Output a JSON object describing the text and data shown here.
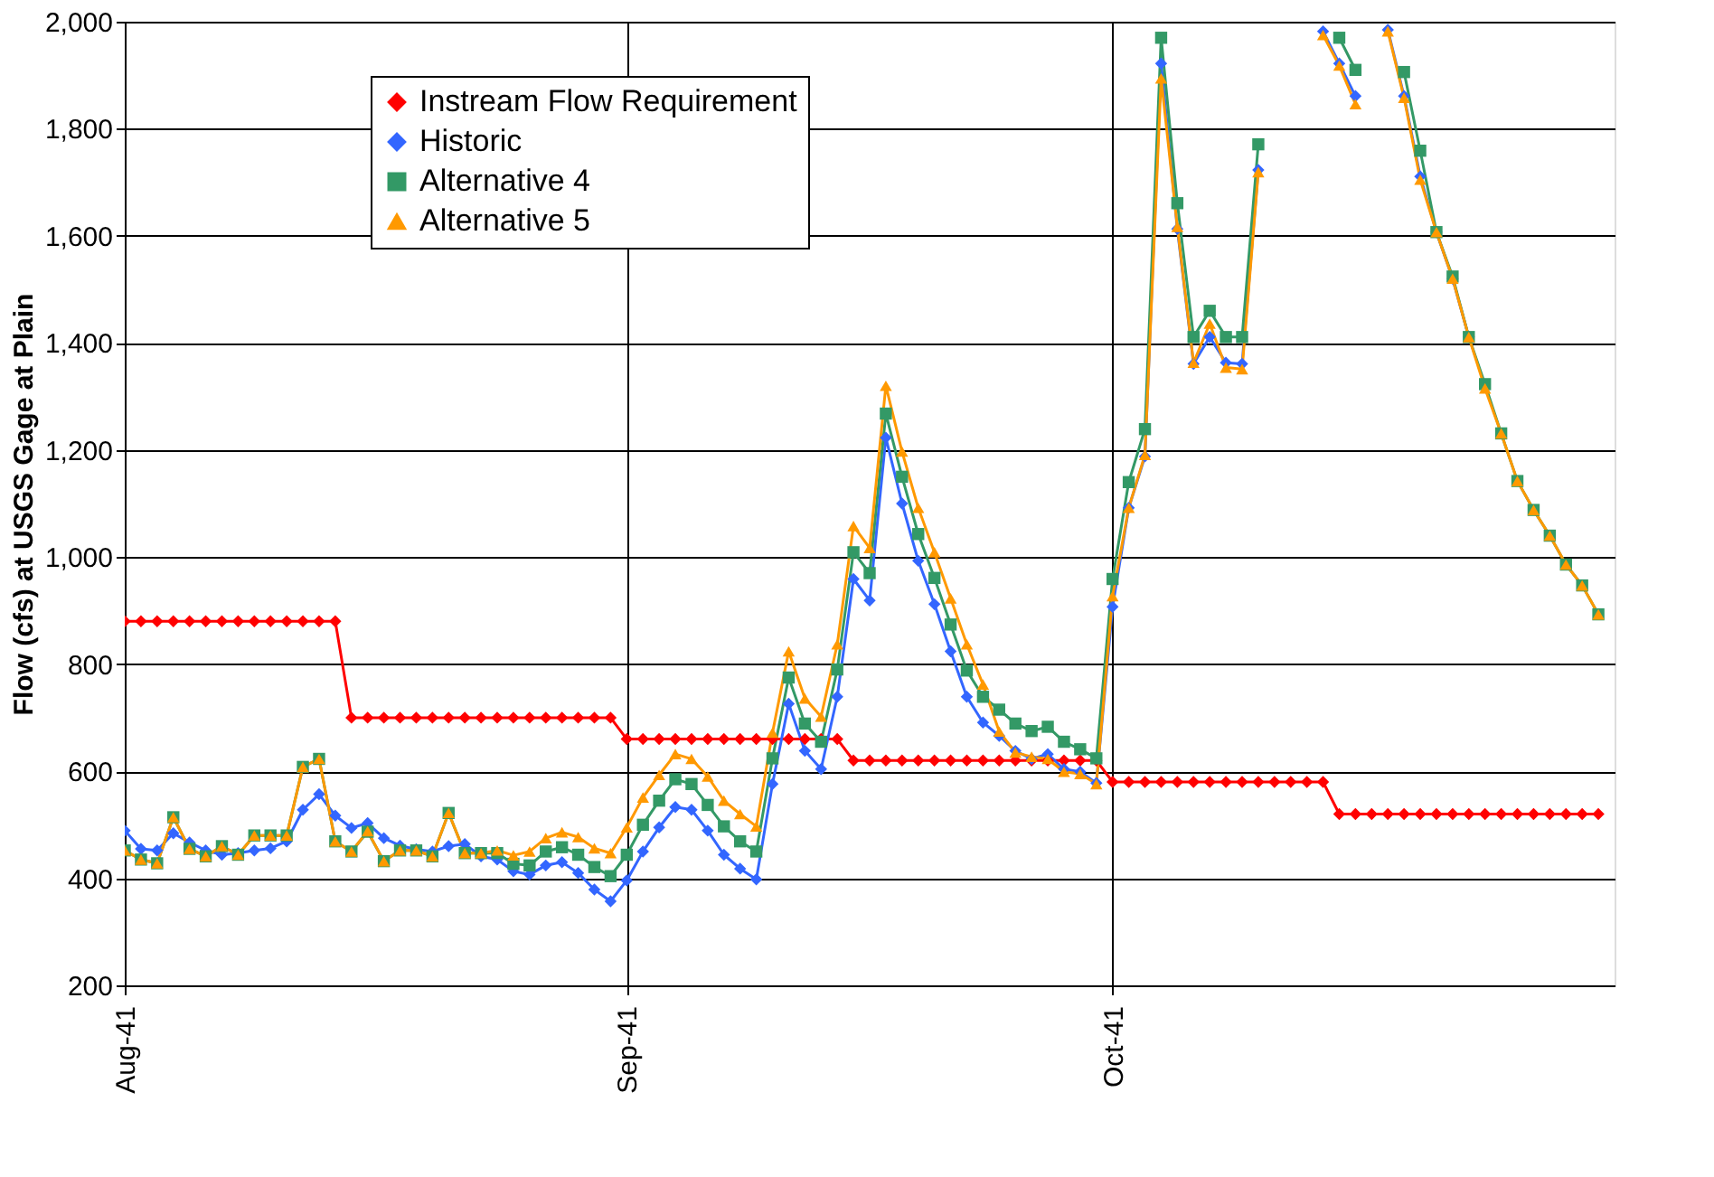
{
  "chart_data": {
    "type": "line",
    "ylabel": "Flow (cfs) at USGS Gage at Plain",
    "x": [
      "1941-08-01",
      "1941-08-02",
      "1941-08-03",
      "1941-08-04",
      "1941-08-05",
      "1941-08-06",
      "1941-08-07",
      "1941-08-08",
      "1941-08-09",
      "1941-08-10",
      "1941-08-11",
      "1941-08-12",
      "1941-08-13",
      "1941-08-14",
      "1941-08-15",
      "1941-08-16",
      "1941-08-17",
      "1941-08-18",
      "1941-08-19",
      "1941-08-20",
      "1941-08-21",
      "1941-08-22",
      "1941-08-23",
      "1941-08-24",
      "1941-08-25",
      "1941-08-26",
      "1941-08-27",
      "1941-08-28",
      "1941-08-29",
      "1941-08-30",
      "1941-08-31",
      "1941-09-01",
      "1941-09-02",
      "1941-09-03",
      "1941-09-04",
      "1941-09-05",
      "1941-09-06",
      "1941-09-07",
      "1941-09-08",
      "1941-09-09",
      "1941-09-10",
      "1941-09-11",
      "1941-09-12",
      "1941-09-13",
      "1941-09-14",
      "1941-09-15",
      "1941-09-16",
      "1941-09-17",
      "1941-09-18",
      "1941-09-19",
      "1941-09-20",
      "1941-09-21",
      "1941-09-22",
      "1941-09-23",
      "1941-09-24",
      "1941-09-25",
      "1941-09-26",
      "1941-09-27",
      "1941-09-28",
      "1941-09-29",
      "1941-09-30",
      "1941-10-01",
      "1941-10-02",
      "1941-10-03",
      "1941-10-04",
      "1941-10-05",
      "1941-10-06",
      "1941-10-07",
      "1941-10-08",
      "1941-10-09",
      "1941-10-10",
      "1941-10-11",
      "1941-10-12",
      "1941-10-13",
      "1941-10-14",
      "1941-10-15",
      "1941-10-16",
      "1941-10-17",
      "1941-10-18",
      "1941-10-19",
      "1941-10-20",
      "1941-10-21",
      "1941-10-22",
      "1941-10-23",
      "1941-10-24",
      "1941-10-25",
      "1941-10-26",
      "1941-10-27",
      "1941-10-28",
      "1941-10-29",
      "1941-10-30",
      "1941-10-31"
    ],
    "series": [
      {
        "name": "Instream Flow Requirement",
        "color": "#ff0000",
        "marker": "diamond",
        "values": [
          880,
          880,
          880,
          880,
          880,
          880,
          880,
          880,
          880,
          880,
          880,
          880,
          880,
          880,
          700,
          700,
          700,
          700,
          700,
          700,
          700,
          700,
          700,
          700,
          700,
          700,
          700,
          700,
          700,
          700,
          700,
          660,
          660,
          660,
          660,
          660,
          660,
          660,
          660,
          660,
          660,
          660,
          660,
          660,
          660,
          620,
          620,
          620,
          620,
          620,
          620,
          620,
          620,
          620,
          620,
          620,
          620,
          620,
          620,
          620,
          620,
          580,
          580,
          580,
          580,
          580,
          580,
          580,
          580,
          580,
          580,
          580,
          580,
          580,
          580,
          520,
          520,
          520,
          520,
          520,
          520,
          520,
          520,
          520,
          520,
          520,
          520,
          520,
          520,
          520,
          520,
          520
        ]
      },
      {
        "name": "Historic",
        "color": "#3366ff",
        "marker": "diamond",
        "values": [
          489,
          455,
          452,
          484,
          467,
          452,
          444,
          447,
          452,
          456,
          469,
          528,
          557,
          517,
          494,
          503,
          475,
          461,
          454,
          450,
          460,
          464,
          441,
          435,
          413,
          407,
          424,
          430,
          410,
          379,
          357,
          396,
          450,
          495,
          533,
          528,
          489,
          444,
          418,
          398,
          576,
          726,
          638,
          604,
          739,
          959,
          919,
          1223,
          1100,
          993,
          912,
          824,
          739,
          691,
          666,
          638,
          623,
          632,
          604,
          599,
          578,
          907,
          1092,
          1188,
          1922,
          1613,
          1361,
          1411,
          1363,
          1361,
          1723,
          null,
          null,
          null,
          1982,
          1922,
          1861,
          null,
          1985,
          1861,
          1711,
          1607,
          1520,
          1411,
          null,
          null,
          null,
          null,
          null,
          null,
          null,
          null
        ]
      },
      {
        "name": "Alternative 4",
        "color": "#339966",
        "marker": "square",
        "values": [
          452,
          435,
          428,
          514,
          455,
          441,
          460,
          444,
          480,
          480,
          480,
          608,
          623,
          469,
          450,
          487,
          432,
          452,
          452,
          441,
          522,
          447,
          447,
          447,
          427,
          424,
          450,
          458,
          444,
          421,
          404,
          444,
          500,
          545,
          585,
          576,
          537,
          497,
          469,
          450,
          624,
          775,
          689,
          655,
          790,
          1009,
          970,
          1268,
          1150,
          1043,
          961,
          874,
          788,
          739,
          715,
          689,
          675,
          683,
          655,
          641,
          624,
          959,
          1140,
          1239,
          1970,
          1661,
          1411,
          1460,
          1411,
          1411,
          1771,
          null,
          null,
          null,
          null,
          1970,
          1910,
          null,
          null,
          1906,
          1759,
          1607,
          1524,
          1411,
          1323,
          1231,
          1142,
          1088,
          1040,
          986,
          947,
          893
        ]
      },
      {
        "name": "Alternative 5",
        "color": "#ff9900",
        "marker": "triangle",
        "values": [
          452,
          435,
          428,
          514,
          455,
          441,
          460,
          444,
          480,
          480,
          480,
          608,
          623,
          469,
          450,
          488,
          432,
          452,
          452,
          441,
          522,
          447,
          447,
          452,
          443,
          450,
          475,
          486,
          477,
          456,
          447,
          495,
          551,
          593,
          632,
          623,
          590,
          545,
          520,
          497,
          672,
          824,
          736,
          702,
          837,
          1058,
          1017,
          1320,
          1197,
          1092,
          1009,
          923,
          837,
          762,
          674,
          635,
          627,
          623,
          599,
          595,
          576,
          927,
          1092,
          1191,
          1894,
          1617,
          1363,
          1436,
          1354,
          1351,
          1719,
          null,
          null,
          null,
          1975,
          1918,
          1846,
          null,
          1982,
          1858,
          1705,
          1607,
          1520,
          1411,
          1315,
          1231,
          1142,
          1088,
          1040,
          986,
          947,
          893
        ]
      }
    ],
    "xlim": [
      "1941-08-01",
      "1941-11-01"
    ],
    "xticks": [
      {
        "value": "1941-08-01",
        "label": "Aug-41"
      },
      {
        "value": "1941-09-01",
        "label": "Sep-41"
      },
      {
        "value": "1941-10-01",
        "label": "Oct-41"
      }
    ],
    "ylim": [
      200,
      2000
    ],
    "yticks": [
      {
        "value": 200,
        "label": "200"
      },
      {
        "value": 400,
        "label": "400"
      },
      {
        "value": 600,
        "label": "600"
      },
      {
        "value": 800,
        "label": "800"
      },
      {
        "value": 1000,
        "label": "1,000"
      },
      {
        "value": 1200,
        "label": "1,200"
      },
      {
        "value": 1400,
        "label": "1,400"
      },
      {
        "value": 1600,
        "label": "1,600"
      },
      {
        "value": 1800,
        "label": "1,800"
      },
      {
        "value": 2000,
        "label": "2,000"
      }
    ],
    "grid": true,
    "legend": "top left"
  }
}
